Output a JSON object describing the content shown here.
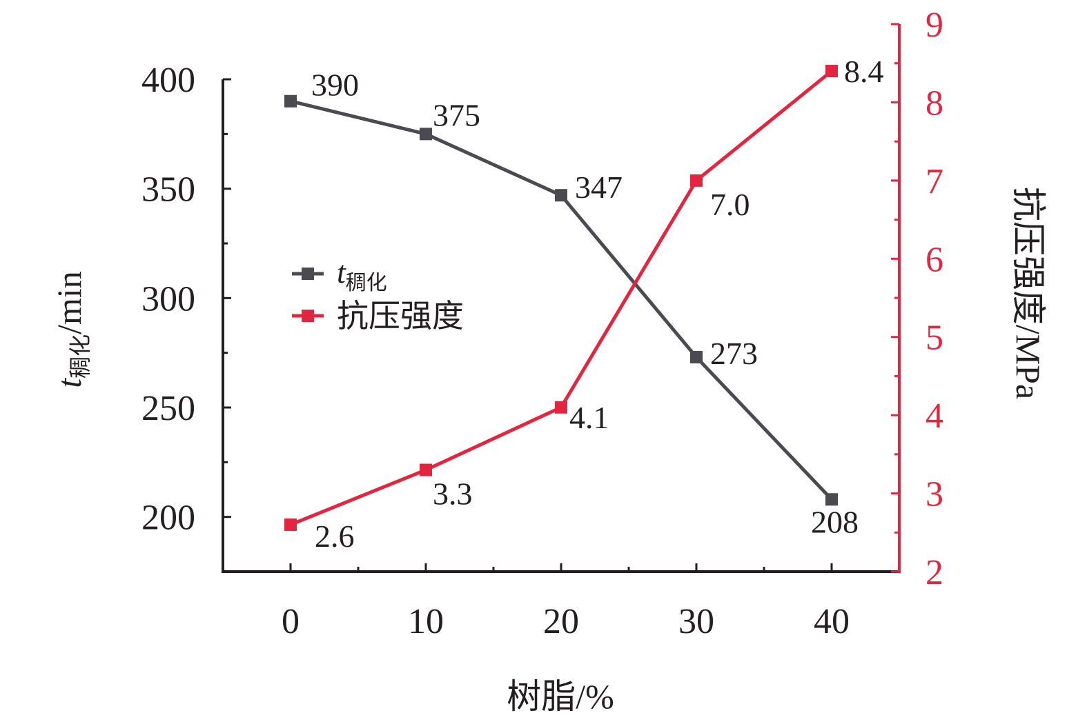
{
  "colors": {
    "time_series": "#4a4a50",
    "strength_series": "#e3263f",
    "axis": "#231f20",
    "right_axis": "#e3263f"
  },
  "chart_data": {
    "type": "line",
    "x": [
      0,
      10,
      20,
      30,
      40
    ],
    "xlabel": "树脂/%",
    "ylabel_left": {
      "main": "t",
      "sub": "稠化",
      "unit": "/min"
    },
    "ylabel_right": "抗压强度/MPa",
    "xlim": [
      -5,
      45
    ],
    "ylim_left": [
      175,
      400
    ],
    "ylim_right": [
      2,
      9
    ],
    "xticks": [
      0,
      10,
      20,
      30,
      40
    ],
    "yticks_left": [
      200,
      250,
      300,
      350,
      400
    ],
    "yticks_right": [
      2,
      3,
      4,
      5,
      6,
      7,
      8,
      9
    ],
    "grid": false,
    "legend_position": "center-left",
    "series": [
      {
        "name": "t稠化",
        "name_main": "t",
        "name_sub": "稠化",
        "axis": "left",
        "values": [
          390,
          375,
          347,
          273,
          208
        ],
        "labels": [
          "390",
          "375",
          "347",
          "273",
          "208"
        ]
      },
      {
        "name": "抗压强度",
        "axis": "right",
        "values": [
          2.6,
          3.3,
          4.1,
          7.0,
          8.4
        ],
        "labels": [
          "2.6",
          "3.3",
          "4.1",
          "7.0",
          "8.4"
        ]
      }
    ]
  }
}
